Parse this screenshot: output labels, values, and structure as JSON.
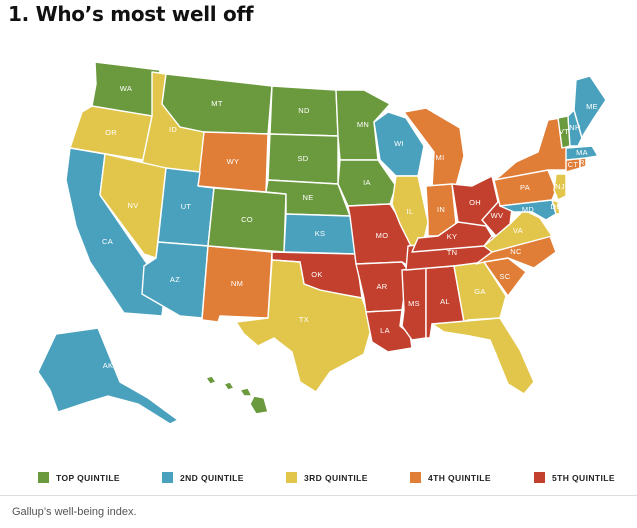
{
  "title": "1. Who’s most well off",
  "source": "Gallup’s well-being index.",
  "colors": {
    "top": "#6b9a3e",
    "second": "#4aa1bd",
    "third": "#e2c64b",
    "fourth": "#e07d36",
    "fifth": "#c2402d"
  },
  "legend": [
    {
      "key": "top",
      "label": "TOP QUINTILE"
    },
    {
      "key": "second",
      "label": "2ND QUINTILE"
    },
    {
      "key": "third",
      "label": "3RD QUINTILE"
    },
    {
      "key": "fourth",
      "label": "4TH QUINTILE"
    },
    {
      "key": "fifth",
      "label": "5TH QUINTILE"
    }
  ],
  "states": {
    "WA": "top",
    "MT": "top",
    "ND": "top",
    "SD": "top",
    "NE": "top",
    "MN": "top",
    "IA": "top",
    "CO": "top",
    "VT": "top",
    "CA": "second",
    "UT": "second",
    "AZ": "second",
    "KS": "second",
    "WI": "second",
    "ME": "second",
    "NH": "second",
    "MA": "second",
    "MD": "second",
    "AK": "second",
    "OR": "third",
    "ID": "third",
    "NV": "third",
    "TX": "third",
    "IL": "third",
    "VA": "third",
    "GA": "third",
    "FL": "third",
    "NJ": "third",
    "DE": "third",
    "HI": "top",
    "WY": "fourth",
    "NM": "fourth",
    "MI": "fourth",
    "IN": "fourth",
    "NY": "fourth",
    "PA": "fourth",
    "NC": "fourth",
    "SC": "fourth",
    "CT": "fourth",
    "RI": "fourth",
    "MO": "fifth",
    "OK": "fifth",
    "AR": "fifth",
    "LA": "fifth",
    "MS": "fifth",
    "AL": "fifth",
    "TN": "fifth",
    "KY": "fifth",
    "OH": "fifth",
    "WV": "fifth"
  }
}
